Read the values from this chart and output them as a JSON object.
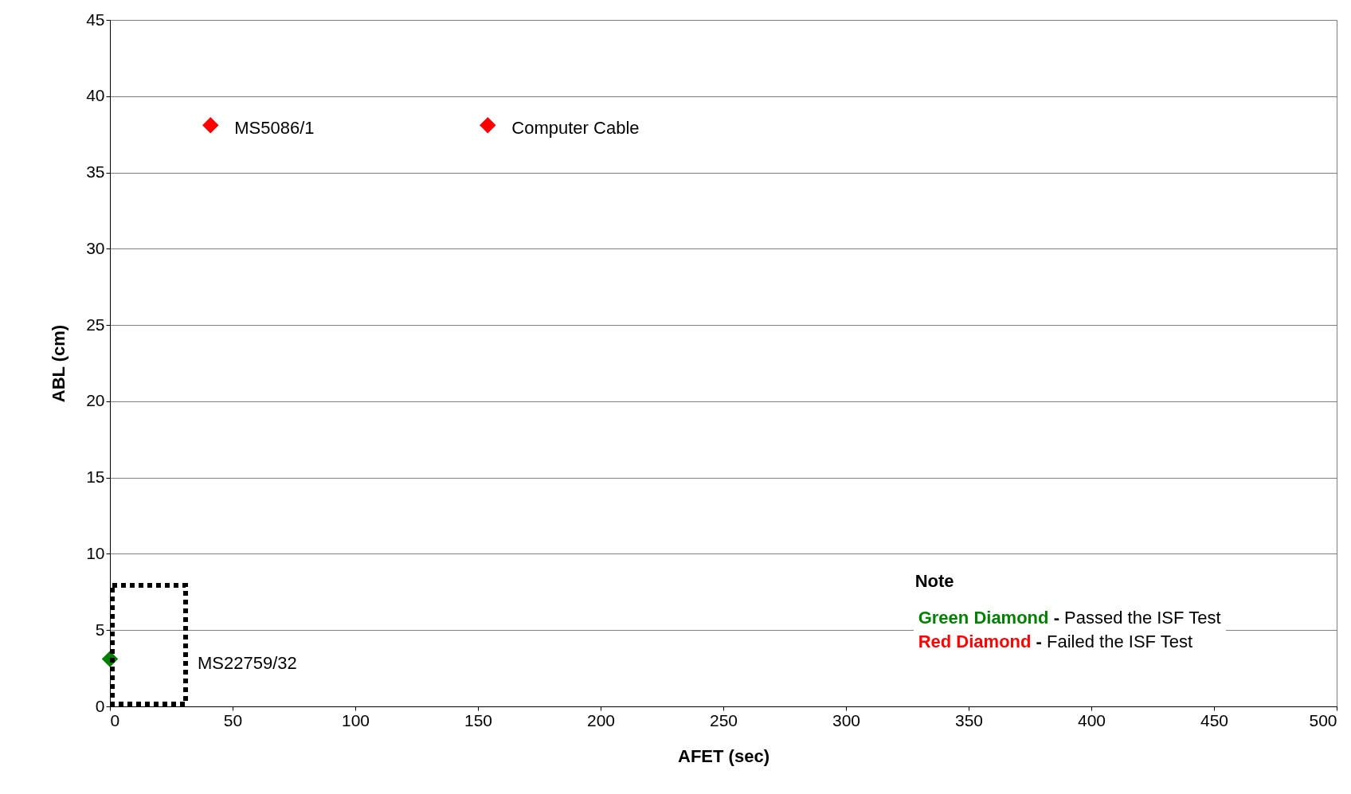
{
  "chart_data": {
    "type": "scatter",
    "xlabel": "AFET (sec)",
    "ylabel": "ABL (cm)",
    "xlim": [
      0,
      500
    ],
    "xticks": [
      0,
      50,
      100,
      150,
      200,
      250,
      300,
      350,
      400,
      450,
      500
    ],
    "ylim": [
      0,
      45
    ],
    "yticks": [
      0,
      5,
      10,
      15,
      20,
      25,
      30,
      35,
      40,
      45
    ],
    "series": [
      {
        "color": "#008000",
        "x": [
          0
        ],
        "values": [
          3.1
        ]
      },
      {
        "color": "#ff0000",
        "x": [
          41,
          154
        ],
        "values": [
          38.1,
          38.1
        ]
      }
    ],
    "annotations": [
      {
        "text": "MS5086/1",
        "x": 41,
        "y": 38.1
      },
      {
        "text": "Computer Cable",
        "x": 154,
        "y": 38.1
      },
      "MS22759/32",
      "Note",
      "Green Diamond - Passed the ISF Test",
      "Red Diamond - Failed the ISF Test"
    ],
    "marker": "diamond",
    "grid": "y",
    "legend": false
  }
}
